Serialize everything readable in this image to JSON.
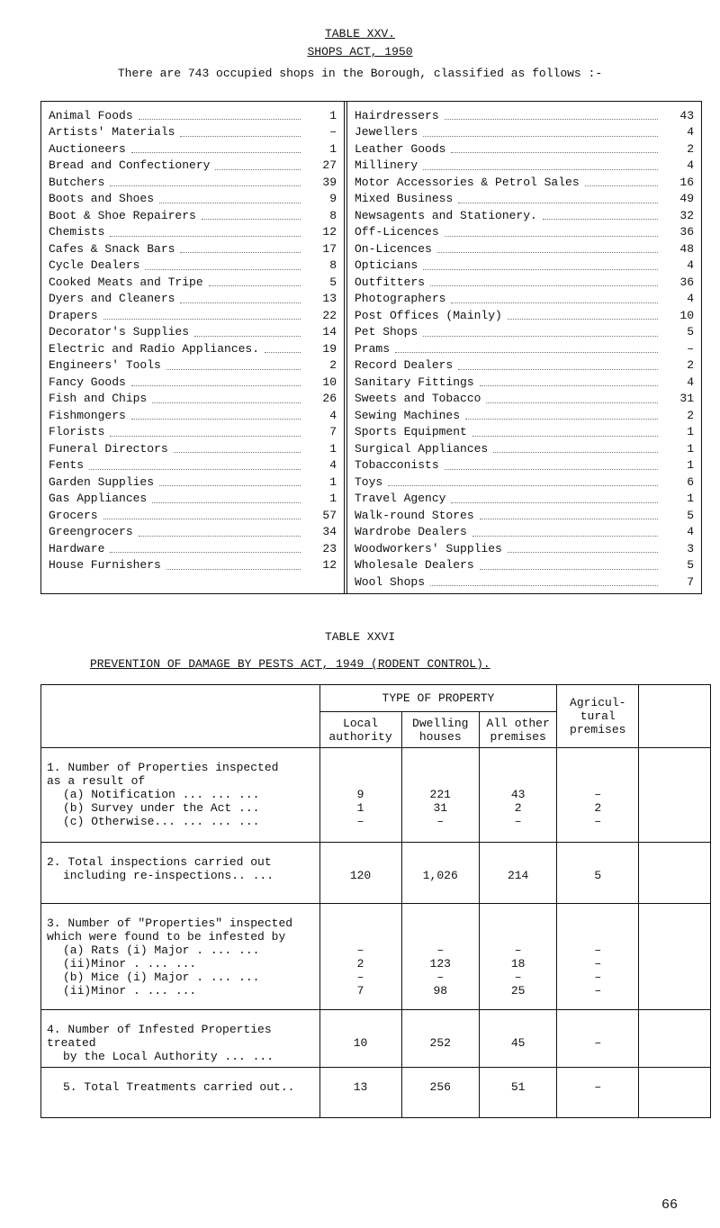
{
  "table25": {
    "title": "TABLE XXV.",
    "subtitle": "SHOPS ACT, 1950",
    "intro": "There are 743 occupied shops in the Borough, classified as follows :-",
    "left": [
      [
        "Animal Foods",
        1
      ],
      [
        "Artists' Materials",
        "–"
      ],
      [
        "Auctioneers",
        1
      ],
      [
        "Bread and Confectionery",
        27
      ],
      [
        "Butchers",
        39
      ],
      [
        "Boots and Shoes",
        9
      ],
      [
        "Boot & Shoe Repairers",
        8
      ],
      [
        "Chemists",
        12
      ],
      [
        "Cafes & Snack Bars",
        17
      ],
      [
        "Cycle Dealers",
        8
      ],
      [
        "Cooked Meats and Tripe",
        5
      ],
      [
        "Dyers and Cleaners",
        13
      ],
      [
        "Drapers",
        22
      ],
      [
        "Decorator's Supplies",
        14
      ],
      [
        "Electric and Radio Appliances.",
        19
      ],
      [
        "Engineers' Tools",
        2
      ],
      [
        "Fancy Goods",
        10
      ],
      [
        "Fish and Chips",
        26
      ],
      [
        "Fishmongers",
        4
      ],
      [
        "Florists",
        7
      ],
      [
        "Funeral Directors",
        1
      ],
      [
        "Fents",
        4
      ],
      [
        "Garden Supplies",
        1
      ],
      [
        "Gas Appliances",
        1
      ],
      [
        "Grocers",
        57
      ],
      [
        "Greengrocers",
        34
      ],
      [
        "Hardware",
        23
      ],
      [
        "House Furnishers",
        12
      ]
    ],
    "right": [
      [
        "Hairdressers",
        43
      ],
      [
        "Jewellers",
        4
      ],
      [
        "Leather Goods",
        2
      ],
      [
        "Millinery",
        4
      ],
      [
        "Motor Accessories & Petrol Sales",
        16
      ],
      [
        "Mixed Business",
        49
      ],
      [
        "Newsagents and Stationery.",
        32
      ],
      [
        "Off-Licences",
        36
      ],
      [
        "On-Licences",
        48
      ],
      [
        "Opticians",
        4
      ],
      [
        "Outfitters",
        36
      ],
      [
        "Photographers",
        4
      ],
      [
        "Post Offices (Mainly)",
        10
      ],
      [
        "Pet Shops",
        5
      ],
      [
        "Prams",
        "–"
      ],
      [
        "Record Dealers",
        2
      ],
      [
        "Sanitary Fittings",
        4
      ],
      [
        "Sweets and Tobacco",
        31
      ],
      [
        "Sewing Machines",
        2
      ],
      [
        "Sports Equipment",
        1
      ],
      [
        "Surgical Appliances",
        1
      ],
      [
        "Tobacconists",
        1
      ],
      [
        "Toys",
        6
      ],
      [
        "Travel Agency",
        1
      ],
      [
        "Walk-round Stores",
        5
      ],
      [
        "Wardrobe Dealers",
        4
      ],
      [
        "Woodworkers' Supplies",
        3
      ],
      [
        "Wholesale Dealers",
        5
      ],
      [
        "Wool Shops",
        7
      ]
    ]
  },
  "table26": {
    "title": "TABLE XXVI",
    "subtitle": "PREVENTION OF DAMAGE BY PESTS ACT, 1949 (RODENT CONTROL).",
    "headers": {
      "group": "TYPE OF PROPERTY",
      "local": "Local authority",
      "dwelling": "Dwelling houses",
      "other": "All other premises",
      "agricultural": "Agricul- tural premises"
    },
    "sections": [
      {
        "heading": [
          "1. Number of Properties inspected",
          "as a result of"
        ],
        "rows": [
          {
            "label": "(a) Notification ... ... ...",
            "values": [
              9,
              221,
              43,
              "–"
            ]
          },
          {
            "label": "(b) Survey under the Act ...",
            "values": [
              1,
              31,
              2,
              2
            ]
          },
          {
            "label": "(c) Otherwise... ... ... ...",
            "values": [
              "–",
              "–",
              "–",
              "–"
            ]
          }
        ]
      },
      {
        "heading": [
          "2. Total inspections carried out"
        ],
        "rows": [
          {
            "label": "including re-inspections.. ...",
            "values": [
              120,
              "1,026",
              214,
              5
            ]
          }
        ]
      },
      {
        "heading": [
          "3. Number of \"Properties\" inspected",
          "which were found to be infested by"
        ],
        "rows": [
          {
            "label": "(a) Rats (i) Major . ... ...",
            "values": [
              "–",
              "–",
              "–",
              "–"
            ]
          },
          {
            "label": "(ii)Minor . ... ...",
            "values": [
              2,
              123,
              18,
              "–"
            ]
          },
          {
            "label": "(b) Mice (i) Major . ... ...",
            "values": [
              "–",
              "–",
              "–",
              "–"
            ]
          },
          {
            "label": "(ii)Minor . ... ...",
            "values": [
              7,
              98,
              25,
              "–"
            ]
          }
        ]
      },
      {
        "heading": [
          "4. Number of Infested Properties treated"
        ],
        "rows": [
          {
            "label": "by the Local Authority ... ...",
            "values": [
              10,
              252,
              45,
              "–"
            ]
          }
        ]
      },
      {
        "rows": [
          {
            "label": "5. Total Treatments carried out..",
            "values": [
              13,
              256,
              51,
              "–"
            ]
          }
        ]
      }
    ]
  },
  "page_number": "66"
}
